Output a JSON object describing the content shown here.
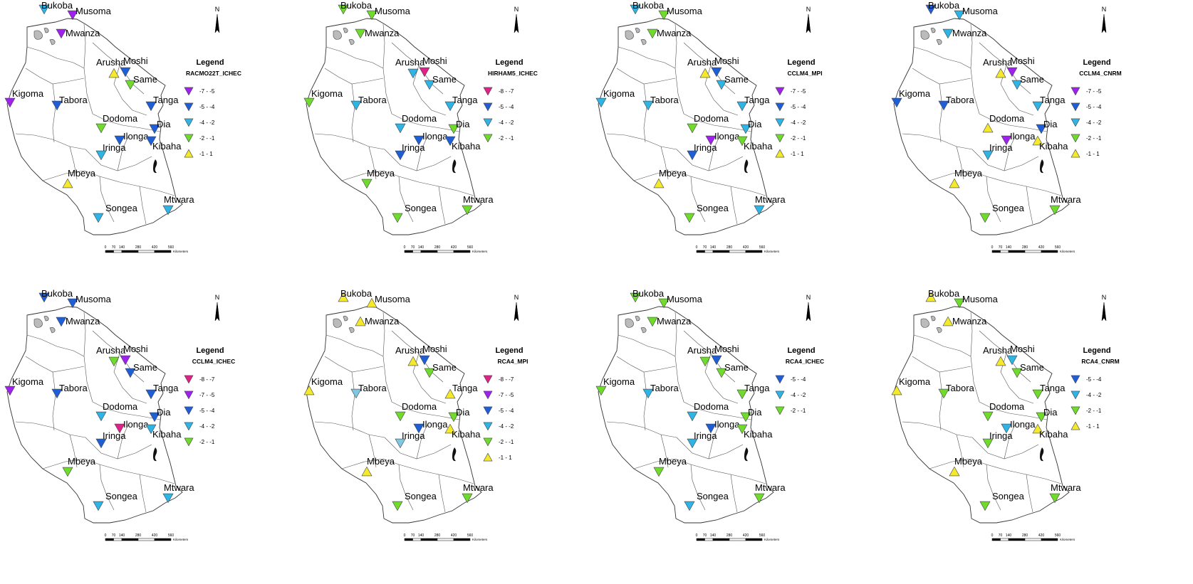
{
  "classes": {
    "c87": {
      "label": "-8 - -7",
      "color": "#e0218a",
      "shape": "down"
    },
    "c75": {
      "label": "-7 - -5",
      "color": "#a020f0",
      "shape": "down"
    },
    "c54": {
      "label": "-5 - -4",
      "color": "#1e5fd8",
      "shape": "down"
    },
    "c42": {
      "label": "-4 - -2",
      "color": "#2eb5e6",
      "shape": "down"
    },
    "c42l": {
      "label": "-4 - -2",
      "color": "#7ec8e3",
      "shape": "down"
    },
    "c21": {
      "label": "-2 - -1",
      "color": "#6fdc2c",
      "shape": "down"
    },
    "c11": {
      "label": "-1 - 1",
      "color": "#f4e92a",
      "shape": "up"
    }
  },
  "stations": [
    "Bukoba",
    "Musoma",
    "Mwanza",
    "Arusha",
    "Moshi",
    "Same",
    "Kigoma",
    "Tabora",
    "Tanga",
    "Dodoma",
    "Ilonga",
    "Dia",
    "Kibaha",
    "Iringa",
    "Mbeya",
    "Songea",
    "Mtwara"
  ],
  "scalebar": {
    "ticks": [
      "0",
      "70",
      "140",
      "280",
      "420",
      "560"
    ],
    "unit": "Kilometers"
  },
  "north_label": "N",
  "legend_heading": "Legend",
  "maps": [
    {
      "model": "RACMO22T_ICHEC",
      "legend": [
        "c75",
        "c54",
        "c42",
        "c21",
        "c11"
      ],
      "stations": {
        "Bukoba": "c42",
        "Musoma": "c75",
        "Mwanza": "c75",
        "Arusha": "c11",
        "Moshi": "c54",
        "Same": "c21",
        "Kigoma": "c75",
        "Tabora": "c54",
        "Tanga": "c54",
        "Dodoma": "c21",
        "Ilonga": "c54",
        "Dia": "c54",
        "Kibaha": "c54",
        "Iringa": "c42",
        "Mbeya": "c11",
        "Songea": "c42",
        "Mtwara": "c42"
      }
    },
    {
      "model": "HIRHAM5_ICHEC",
      "legend": [
        "c87",
        "c54",
        "c42",
        "c21"
      ],
      "stations": {
        "Bukoba": "c21",
        "Musoma": "c21",
        "Mwanza": "c21",
        "Arusha": "c42",
        "Moshi": "c87",
        "Same": "c42",
        "Kigoma": "c21",
        "Tabora": "c42",
        "Tanga": "c42",
        "Dodoma": "c42",
        "Ilonga": "c54",
        "Dia": "c21",
        "Kibaha": "c54",
        "Iringa": "c54",
        "Mbeya": "c21",
        "Songea": "c21",
        "Mtwara": "c21"
      }
    },
    {
      "model": "CCLM4_MPI",
      "legend": [
        "c75",
        "c54",
        "c42",
        "c21",
        "c11"
      ],
      "stations": {
        "Bukoba": "c42",
        "Musoma": "c21",
        "Mwanza": "c21",
        "Arusha": "c11",
        "Moshi": "c54",
        "Same": "c42",
        "Kigoma": "c42",
        "Tabora": "c42",
        "Tanga": "c42",
        "Dodoma": "c21",
        "Ilonga": "c75",
        "Dia": "c42",
        "Kibaha": "c21",
        "Iringa": "c54",
        "Mbeya": "c11",
        "Songea": "c21",
        "Mtwara": "c42"
      }
    },
    {
      "model": "CCLM4_CNRM",
      "legend": [
        "c75",
        "c54",
        "c42",
        "c21",
        "c11"
      ],
      "stations": {
        "Bukoba": "c54",
        "Musoma": "c42",
        "Mwanza": "c42",
        "Arusha": "c11",
        "Moshi": "c75",
        "Same": "c42",
        "Kigoma": "c54",
        "Tabora": "c54",
        "Tanga": "c42",
        "Dodoma": "c11",
        "Ilonga": "c75",
        "Dia": "c54",
        "Kibaha": "c11",
        "Iringa": "c42",
        "Mbeya": "c11",
        "Songea": "c21",
        "Mtwara": "c21"
      }
    },
    {
      "model": "CCLM4_ICHEC",
      "legend": [
        "c87",
        "c75",
        "c54",
        "c42",
        "c21"
      ],
      "stations": {
        "Bukoba": "c54",
        "Musoma": "c54",
        "Mwanza": "c54",
        "Arusha": "c21",
        "Moshi": "c75",
        "Same": "c54",
        "Kigoma": "c75",
        "Tabora": "c54",
        "Tanga": "c54",
        "Dodoma": "c42",
        "Ilonga": "c87",
        "Dia": "c54",
        "Kibaha": "c42",
        "Iringa": "c54",
        "Mbeya": "c21",
        "Songea": "c42",
        "Mtwara": "c42"
      }
    },
    {
      "model": "RCA4_MPI",
      "legend": [
        "c87",
        "c75",
        "c54",
        "c42",
        "c21",
        "c11"
      ],
      "stations": {
        "Bukoba": "c11",
        "Musoma": "c11",
        "Mwanza": "c11",
        "Arusha": "c11",
        "Moshi": "c54",
        "Same": "c21",
        "Kigoma": "c11",
        "Tabora": "c42l",
        "Tanga": "c11",
        "Dodoma": "c21",
        "Ilonga": "c54",
        "Dia": "c21",
        "Kibaha": "c11",
        "Iringa": "c42l",
        "Mbeya": "c11",
        "Songea": "c21",
        "Mtwara": "c21"
      }
    },
    {
      "model": "RCA4_ICHEC",
      "legend": [
        "c54",
        "c42",
        "c21"
      ],
      "stations": {
        "Bukoba": "c21",
        "Musoma": "c21",
        "Mwanza": "c21",
        "Arusha": "c21",
        "Moshi": "c54",
        "Same": "c21",
        "Kigoma": "c21",
        "Tabora": "c42",
        "Tanga": "c21",
        "Dodoma": "c42",
        "Ilonga": "c54",
        "Dia": "c21",
        "Kibaha": "c21",
        "Iringa": "c42",
        "Mbeya": "c21",
        "Songea": "c42",
        "Mtwara": "c21"
      }
    },
    {
      "model": "RCA4_CNRM",
      "legend": [
        "c54",
        "c42",
        "c21",
        "c11"
      ],
      "stations": {
        "Bukoba": "c11",
        "Musoma": "c21",
        "Mwanza": "c11",
        "Arusha": "c11",
        "Moshi": "c42",
        "Same": "c21",
        "Kigoma": "c11",
        "Tabora": "c21",
        "Tanga": "c21",
        "Dodoma": "c21",
        "Ilonga": "c42",
        "Dia": "c21",
        "Kibaha": "c11",
        "Iringa": "c21",
        "Mbeya": "c11",
        "Songea": "c21",
        "Mtwara": "c21"
      }
    }
  ]
}
